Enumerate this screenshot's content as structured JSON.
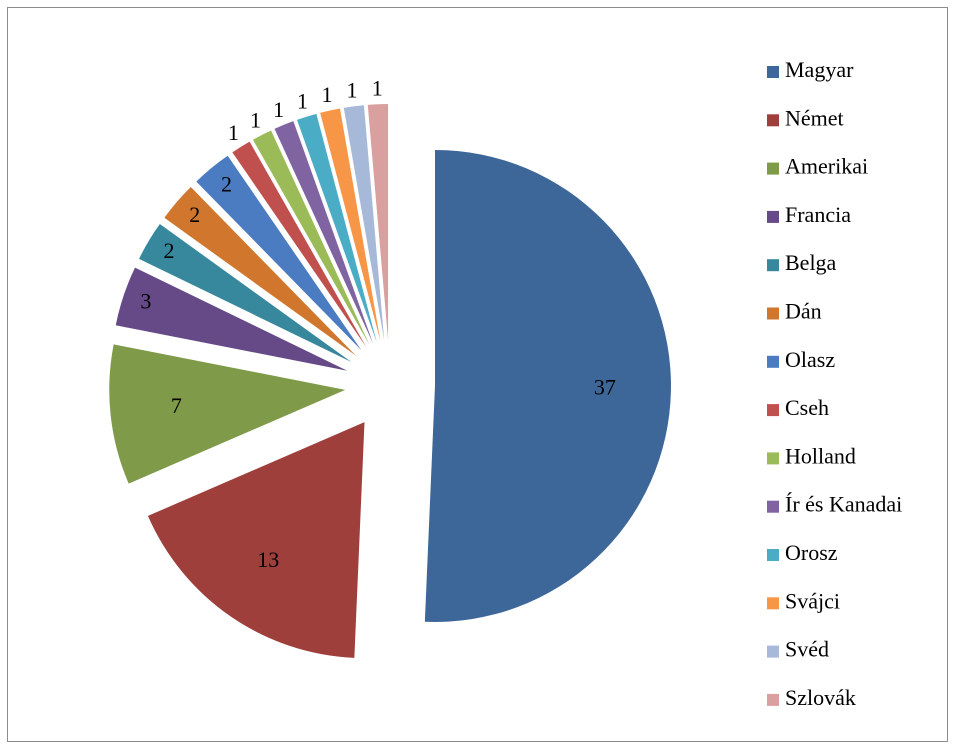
{
  "chart_data": {
    "type": "pie",
    "categories": [
      "Magyar",
      "Német",
      "Amerikai",
      "Francia",
      "Belga",
      "Dán",
      "Olasz",
      "Cseh",
      "Holland",
      "Ír és Kanadai",
      "Orosz",
      "Svájci",
      "Svéd",
      "Szlovák"
    ],
    "values": [
      37,
      13,
      7,
      3,
      2,
      2,
      2,
      1,
      1,
      1,
      1,
      1,
      1,
      1
    ],
    "colors": [
      "#3e6799",
      "#9e3f3c",
      "#7f9a48",
      "#654a87",
      "#37879d",
      "#d1772d",
      "#4b7bc0",
      "#c0504d",
      "#9bbb59",
      "#8064a2",
      "#4bacc6",
      "#f79646",
      "#a7b9d8",
      "#d9a09f"
    ],
    "legend": "right"
  }
}
